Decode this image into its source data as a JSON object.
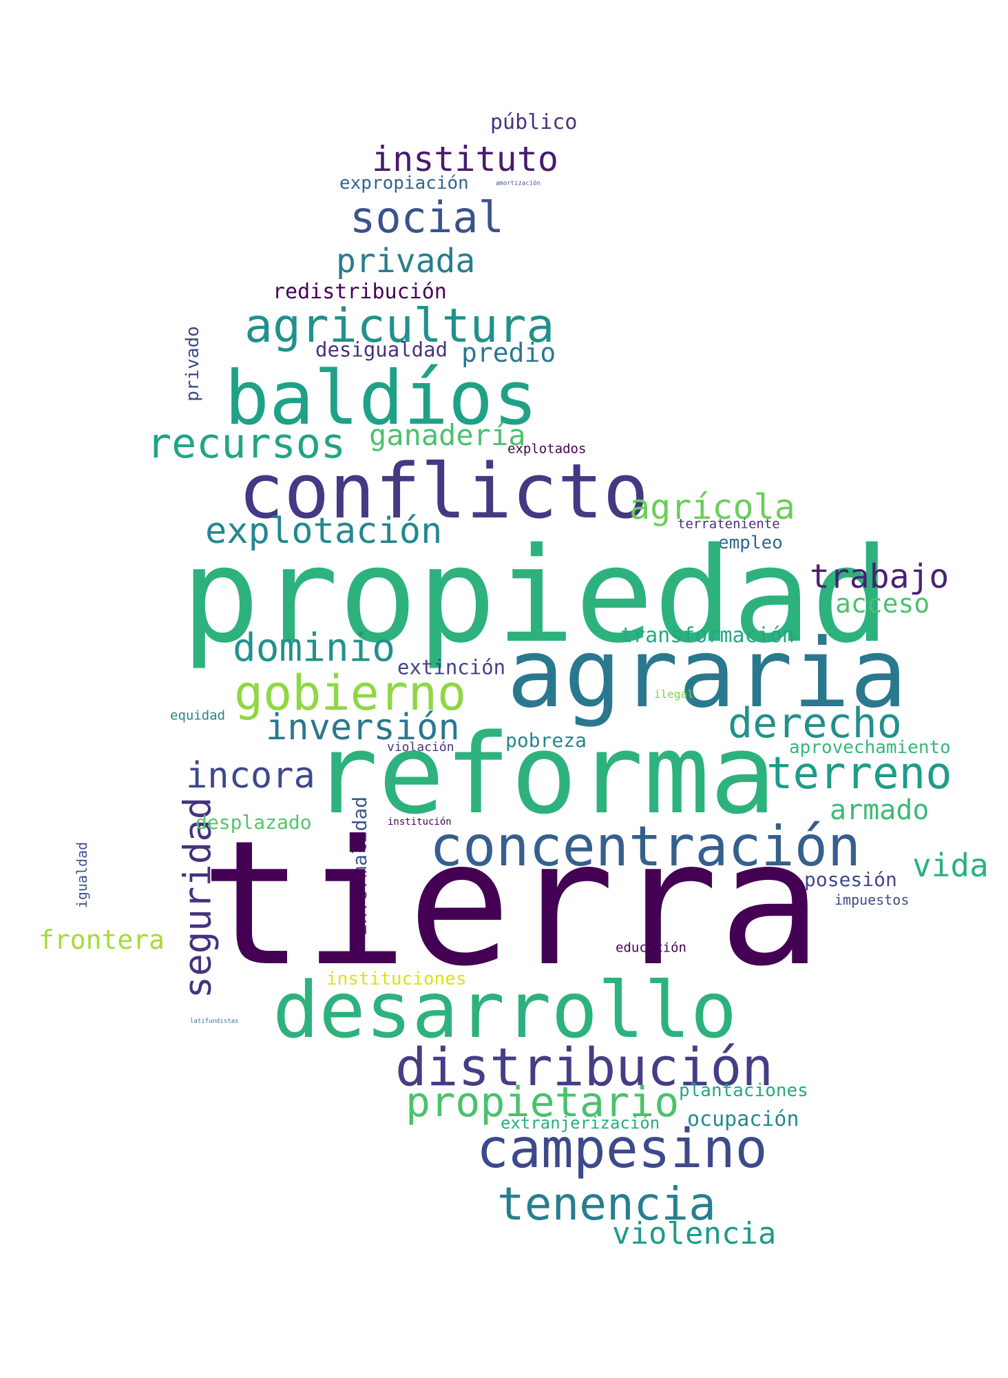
{
  "words": [
    {
      "text": "público",
      "color": "#46327e"
    },
    {
      "text": "instituto",
      "color": "#481b6d"
    },
    {
      "text": "expropiación",
      "color": "#33638d"
    },
    {
      "text": "amortización",
      "color": "#3b528b"
    },
    {
      "text": "social",
      "color": "#3b528b"
    },
    {
      "text": "privada",
      "color": "#287d8e"
    },
    {
      "text": "redistribución",
      "color": "#440154"
    },
    {
      "text": "agricultura",
      "color": "#21918c"
    },
    {
      "text": "privado",
      "color": "#3e4a89"
    },
    {
      "text": "desigualdad",
      "color": "#46327e"
    },
    {
      "text": "predio",
      "color": "#2a788e"
    },
    {
      "text": "baldíos",
      "color": "#1fa187"
    },
    {
      "text": "recursos",
      "color": "#20a486"
    },
    {
      "text": "ganadería",
      "color": "#4ac16d"
    },
    {
      "text": "explotados",
      "color": "#440154"
    },
    {
      "text": "conflicto",
      "color": "#443983"
    },
    {
      "text": "agrícola",
      "color": "#6ccd5a"
    },
    {
      "text": "explotación",
      "color": "#23888e"
    },
    {
      "text": "terrateniente",
      "color": "#472f7d"
    },
    {
      "text": "empleo",
      "color": "#31688e"
    },
    {
      "text": "propiedad",
      "color": "#2db27d"
    },
    {
      "text": "trabajo",
      "color": "#482173"
    },
    {
      "text": "acceso",
      "color": "#4ac16d"
    },
    {
      "text": "dominio",
      "color": "#20928c"
    },
    {
      "text": "transformación",
      "color": "#22a884"
    },
    {
      "text": "extinción",
      "color": "#414487"
    },
    {
      "text": "agraria",
      "color": "#2a788e"
    },
    {
      "text": "gobierno",
      "color": "#8fd744"
    },
    {
      "text": "ilegal",
      "color": "#7ad151"
    },
    {
      "text": "equidad",
      "color": "#25848e"
    },
    {
      "text": "inversión",
      "color": "#2a788e"
    },
    {
      "text": "derecho",
      "color": "#21918c"
    },
    {
      "text": "violación",
      "color": "#46337f"
    },
    {
      "text": "pobreza",
      "color": "#25858e"
    },
    {
      "text": "aprovechamiento",
      "color": "#35b779"
    },
    {
      "text": "incora",
      "color": "#3e4989"
    },
    {
      "text": "reforma",
      "color": "#2db27d"
    },
    {
      "text": "terreno",
      "color": "#1e9b8a"
    },
    {
      "text": "armado",
      "color": "#3bbb75"
    },
    {
      "text": "informalidad",
      "color": "#39568c"
    },
    {
      "text": "seguridad",
      "color": "#46327e"
    },
    {
      "text": "desplazado",
      "color": "#54c568"
    },
    {
      "text": "institución",
      "color": "#440154"
    },
    {
      "text": "concentración",
      "color": "#355f8d"
    },
    {
      "text": "vida",
      "color": "#2ab07f"
    },
    {
      "text": "igualdad",
      "color": "#3b528b"
    },
    {
      "text": "posesión",
      "color": "#404688"
    },
    {
      "text": "impuestos",
      "color": "#3e4a89"
    },
    {
      "text": "tierra",
      "color": "#440154"
    },
    {
      "text": "frontera",
      "color": "#a5db36"
    },
    {
      "text": "educación",
      "color": "#440154"
    },
    {
      "text": "instituciones",
      "color": "#d8e219"
    },
    {
      "text": "latifundistas",
      "color": "#2c728e"
    },
    {
      "text": "desarrollo",
      "color": "#2db27d"
    },
    {
      "text": "distribución",
      "color": "#433e85"
    },
    {
      "text": "propietario",
      "color": "#4ac16d"
    },
    {
      "text": "plantaciones",
      "color": "#22a884"
    },
    {
      "text": "extranjerización",
      "color": "#27ad81"
    },
    {
      "text": "ocupación",
      "color": "#23898e"
    },
    {
      "text": "campesino",
      "color": "#3e4989"
    },
    {
      "text": "tenencia",
      "color": "#277f8e"
    },
    {
      "text": "violencia",
      "color": "#1f9a8a"
    }
  ]
}
